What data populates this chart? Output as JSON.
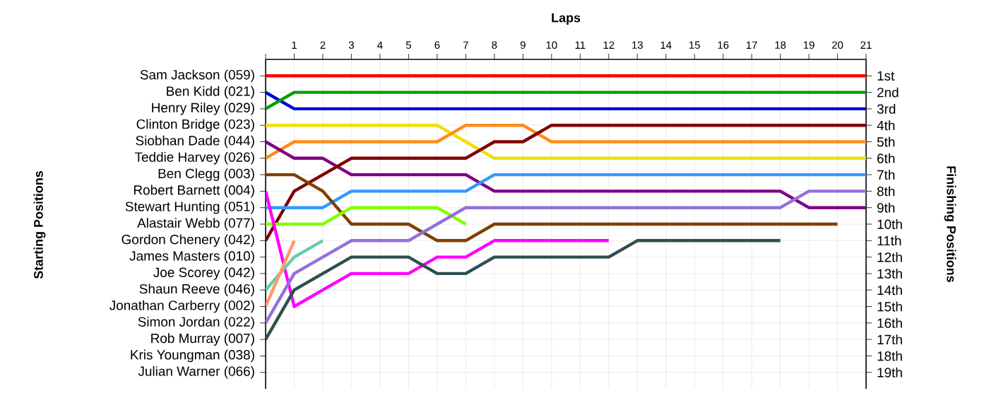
{
  "chart_data": {
    "type": "line",
    "xlabel": "Laps",
    "y2label": "Finishing Positions",
    "x": [
      0,
      1,
      2,
      3,
      4,
      5,
      6,
      7,
      8,
      9,
      10,
      11,
      12,
      13,
      14,
      15,
      16,
      17,
      18,
      19,
      20,
      21
    ],
    "xlim": [
      0,
      21
    ],
    "xticks": [
      {
        "value": 0,
        "label": null
      },
      1,
      2,
      3,
      4,
      5,
      6,
      7,
      8,
      9,
      10,
      11,
      12,
      13,
      14,
      15,
      16,
      17,
      18,
      19,
      20,
      21
    ],
    "annotations": [
      "Sam Jackson (059)",
      "Ben Kidd (021)",
      "Henry Riley (029)",
      "Clinton Bridge (023)",
      "Siobhan Dade (044)",
      "Teddie Harvey (026)",
      "Ben Clegg (003)",
      "Robert Barnett (004)",
      "Stewart Hunting (051)",
      "Alastair Webb (077)",
      "Gordon Chenery (042)",
      "James Masters (010)",
      "Joe Scorey (042)",
      "Shaun Reeve (046)",
      "Jonathan Carberry (002)",
      "Simon Jordan (022)",
      "Rob Murray (007)",
      "Kris Youngman (038)",
      "Julian Warner (066)",
      "Starting Positions"
    ],
    "y2lim": [
      20,
      0
    ],
    "y2ticks": [
      {
        "value": 1,
        "label": "1st"
      },
      {
        "value": 2,
        "label": "2nd"
      },
      {
        "value": 3,
        "label": "3rd"
      },
      {
        "value": 4,
        "label": "4th"
      },
      {
        "value": 5,
        "label": "5th"
      },
      {
        "value": 6,
        "label": "6th"
      },
      {
        "value": 7,
        "label": "7th"
      },
      {
        "value": 8,
        "label": "8th"
      },
      {
        "value": 9,
        "label": "9th"
      },
      {
        "value": 10,
        "label": "10th"
      },
      {
        "value": 11,
        "label": "11th"
      },
      {
        "value": 12,
        "label": "12th"
      },
      {
        "value": 13,
        "label": "13th"
      },
      {
        "value": 14,
        "label": "14th"
      },
      {
        "value": 15,
        "label": "15th"
      },
      {
        "value": 16,
        "label": "16th"
      },
      {
        "value": 17,
        "label": "17th"
      },
      {
        "value": 18,
        "label": "18th"
      },
      {
        "value": 19,
        "label": "19th"
      }
    ],
    "grid": true,
    "marker": "none",
    "line_style": "solid",
    "series": [
      {
        "axis": "y2",
        "color": "#ff0000",
        "values": [
          1,
          1,
          1,
          1,
          1,
          1,
          1,
          1,
          1,
          1,
          1,
          1,
          1,
          1,
          1,
          1,
          1,
          1,
          1,
          1,
          1,
          1
        ]
      },
      {
        "axis": "y2",
        "color": "#0000e0",
        "values": [
          2,
          3,
          3,
          3,
          3,
          3,
          3,
          3,
          3,
          3,
          3,
          3,
          3,
          3,
          3,
          3,
          3,
          3,
          3,
          3,
          3,
          3
        ]
      },
      {
        "axis": "y2",
        "color": "#00a000",
        "values": [
          3,
          2,
          2,
          2,
          2,
          2,
          2,
          2,
          2,
          2,
          2,
          2,
          2,
          2,
          2,
          2,
          2,
          2,
          2,
          2,
          2,
          2
        ]
      },
      {
        "axis": "y2",
        "color": "#f0e000",
        "values": [
          4,
          4,
          4,
          4,
          4,
          4,
          4,
          5,
          6,
          6,
          6,
          6,
          6,
          6,
          6,
          6,
          6,
          6,
          6,
          6,
          6,
          6
        ]
      },
      {
        "axis": "y2",
        "color": "#ff8c1a",
        "values": [
          6,
          5,
          5,
          5,
          5,
          5,
          5,
          4,
          4,
          4,
          5,
          5,
          5,
          5,
          5,
          5,
          5,
          5,
          5,
          5,
          5,
          5
        ]
      },
      {
        "axis": "y2",
        "color": "#800080",
        "values": [
          5,
          6,
          6,
          7,
          7,
          7,
          7,
          7,
          8,
          8,
          8,
          8,
          8,
          8,
          8,
          8,
          8,
          8,
          8,
          9,
          9,
          9
        ]
      },
      {
        "axis": "y2",
        "color": "#800000",
        "values": [
          11,
          8,
          7,
          6,
          6,
          6,
          6,
          6,
          5,
          5,
          4,
          4,
          4,
          4,
          4,
          4,
          4,
          4,
          4,
          4,
          4,
          4
        ]
      },
      {
        "axis": "y2",
        "color": "#3399ff",
        "values": [
          9,
          9,
          9,
          8,
          8,
          8,
          8,
          8,
          7,
          7,
          7,
          7,
          7,
          7,
          7,
          7,
          7,
          7,
          7,
          7,
          7,
          7
        ]
      },
      {
        "axis": "y2",
        "color": "#7f4000",
        "values": [
          7,
          7,
          8,
          10,
          10,
          10,
          11,
          11,
          10,
          10,
          10,
          10,
          10,
          10,
          10,
          10,
          10,
          10,
          10,
          10,
          10,
          null
        ]
      },
      {
        "axis": "y2",
        "color": "#80ff00",
        "values": [
          10,
          10,
          10,
          9,
          9,
          9,
          9,
          10,
          null,
          null,
          null,
          null,
          null,
          null,
          null,
          null,
          null,
          null,
          null,
          null,
          null,
          null
        ]
      },
      {
        "axis": "y2",
        "color": "#ff00ff",
        "values": [
          8,
          15,
          14,
          13,
          13,
          13,
          12,
          12,
          11,
          11,
          11,
          11,
          11,
          null,
          null,
          null,
          null,
          null,
          null,
          null,
          null,
          null
        ]
      },
      {
        "axis": "y2",
        "color": "#66ccaa",
        "values": [
          14,
          12,
          11,
          null,
          null,
          null,
          null,
          null,
          null,
          null,
          null,
          null,
          null,
          null,
          null,
          null,
          null,
          null,
          null,
          null,
          null,
          null
        ]
      },
      {
        "axis": "y2",
        "color": "#ff9966",
        "values": [
          15,
          11,
          null,
          null,
          null,
          null,
          null,
          null,
          null,
          null,
          null,
          null,
          null,
          null,
          null,
          null,
          null,
          null,
          null,
          null,
          null,
          null
        ]
      },
      {
        "axis": "y2",
        "color": "#9370db",
        "values": [
          16,
          13,
          12,
          11,
          11,
          11,
          10,
          9,
          9,
          9,
          9,
          9,
          9,
          9,
          9,
          9,
          9,
          9,
          9,
          8,
          8,
          8
        ]
      },
      {
        "axis": "y2",
        "color": "#2f4f4f",
        "values": [
          17,
          14,
          13,
          12,
          12,
          12,
          13,
          13,
          12,
          12,
          12,
          12,
          12,
          11,
          11,
          11,
          11,
          11,
          11,
          null,
          null,
          null
        ]
      }
    ]
  }
}
